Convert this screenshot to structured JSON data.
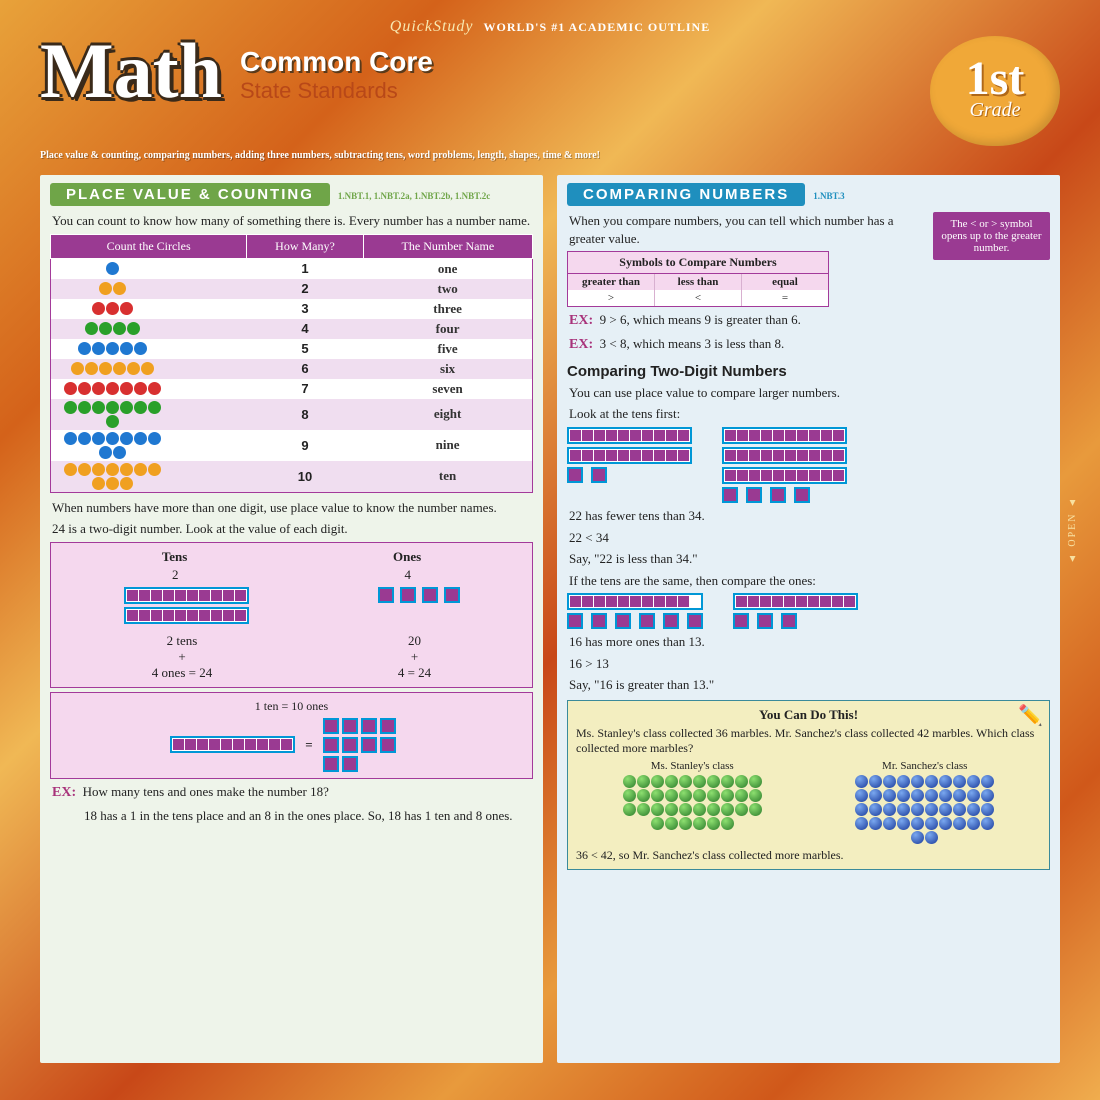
{
  "brand": {
    "name": "QuickStudy",
    "tagline": "WORLD'S #1 ACADEMIC OUTLINE"
  },
  "title": {
    "main": "Math",
    "sub1": "Common Core",
    "sub2": "State Standards"
  },
  "grade": {
    "num": "1st",
    "word": "Grade"
  },
  "topics": "Place value & counting, comparing numbers, adding three numbers, subtracting tens, word problems, length, shapes, time & more!",
  "left": {
    "heading": "Place Value & Counting",
    "standards": "1.NBT.1, 1.NBT.2a, 1.NBT.2b, 1.NBT.2c",
    "intro": "You can count to know how many of something there is. Every number has a number name.",
    "table": {
      "cols": [
        "Count the Circles",
        "How Many?",
        "The Number Name"
      ],
      "rows": [
        {
          "n": "1",
          "w": "one",
          "colors": [
            "#1f78d1"
          ]
        },
        {
          "n": "2",
          "w": "two",
          "colors": [
            "#f0a020",
            "#f0a020"
          ]
        },
        {
          "n": "3",
          "w": "three",
          "colors": [
            "#d83030",
            "#d83030",
            "#d83030"
          ]
        },
        {
          "n": "4",
          "w": "four",
          "colors": [
            "#2aa02a",
            "#2aa02a",
            "#2aa02a",
            "#2aa02a"
          ]
        },
        {
          "n": "5",
          "w": "five",
          "colors": [
            "#1f78d1",
            "#1f78d1",
            "#1f78d1",
            "#1f78d1",
            "#1f78d1"
          ]
        },
        {
          "n": "6",
          "w": "six",
          "colors": [
            "#f0a020",
            "#f0a020",
            "#f0a020",
            "#f0a020",
            "#f0a020",
            "#f0a020"
          ]
        },
        {
          "n": "7",
          "w": "seven",
          "colors": [
            "#d83030",
            "#d83030",
            "#d83030",
            "#d83030",
            "#d83030",
            "#d83030",
            "#d83030"
          ]
        },
        {
          "n": "8",
          "w": "eight",
          "colors": [
            "#2aa02a",
            "#2aa02a",
            "#2aa02a",
            "#2aa02a",
            "#2aa02a",
            "#2aa02a",
            "#2aa02a",
            "#2aa02a"
          ]
        },
        {
          "n": "9",
          "w": "nine",
          "colors": [
            "#1f78d1",
            "#1f78d1",
            "#1f78d1",
            "#1f78d1",
            "#1f78d1",
            "#1f78d1",
            "#1f78d1",
            "#1f78d1",
            "#1f78d1"
          ]
        },
        {
          "n": "10",
          "w": "ten",
          "colors": [
            "#f0a020",
            "#f0a020",
            "#f0a020",
            "#f0a020",
            "#f0a020",
            "#f0a020",
            "#f0a020",
            "#f0a020",
            "#f0a020",
            "#f0a020"
          ]
        }
      ]
    },
    "para2": "When numbers have more than one digit, use place value to know the number names.",
    "para3": "24 is a two-digit number. Look at the value of each digit.",
    "pv": {
      "tens_h": "Tens",
      "ones_h": "Ones",
      "tens_v": "2",
      "ones_v": "4",
      "sum_l1": "2 tens",
      "sum_l2": "+",
      "sum_l3": "4 ones = 24",
      "sum_r1": "20",
      "sum_r2": "+",
      "sum_r3": "4 = 24"
    },
    "conv": "1 ten = 10 ones",
    "exq": "How many tens and ones make the number 18?",
    "exa": "18 has a 1 in the tens place and an 8 in the ones place. So, 18 has 1 ten and 8 ones."
  },
  "right": {
    "heading": "Comparing Numbers",
    "standards": "1.NBT.3",
    "intro": "When you compare numbers, you can tell which number has a greater value.",
    "tip": "The < or > symbol opens up to the greater number.",
    "symbox": {
      "title": "Symbols to Compare Numbers",
      "labels": [
        "greater than",
        "less than",
        "equal"
      ],
      "symbols": [
        ">",
        "<",
        "="
      ]
    },
    "ex1": "9 > 6, which means 9 is greater than 6.",
    "ex2": "3 < 8, which means 3 is less than 8.",
    "subh": "Comparing Two-Digit Numbers",
    "p1": "You can use place value to compare larger numbers.",
    "p2": "Look at the tens first:",
    "cmp1": {
      "aTens": 2,
      "aOnes": 2,
      "bTens": 3,
      "bOnes": 4
    },
    "p3a": "22 has fewer tens than 34.",
    "p3b": "22 < 34",
    "p3c": "Say, \"22 is less than 34.\"",
    "p4": "If the tens are the same, then compare the ones:",
    "cmp2": {
      "aTens": 1,
      "aOnes": 6,
      "bTens": 1,
      "bOnes": 3
    },
    "p5a": "16 has more ones than 13.",
    "p5b": "16 > 13",
    "p5c": "Say, \"16 is greater than 13.\"",
    "problem": {
      "title": "You Can Do This!",
      "text": "Ms. Stanley's class collected 36 marbles. Mr. Sanchez's class collected 42 marbles. Which class collected more marbles?",
      "left_label": "Ms. Stanley's class",
      "left_count": 36,
      "right_label": "Mr. Sanchez's class",
      "right_count": 42,
      "answer": "36 < 42, so Mr. Sanchez's class collected more marbles."
    }
  },
  "labels": {
    "ex": "EX:",
    "equals": "=",
    "open": "▲ OPEN ▲"
  }
}
